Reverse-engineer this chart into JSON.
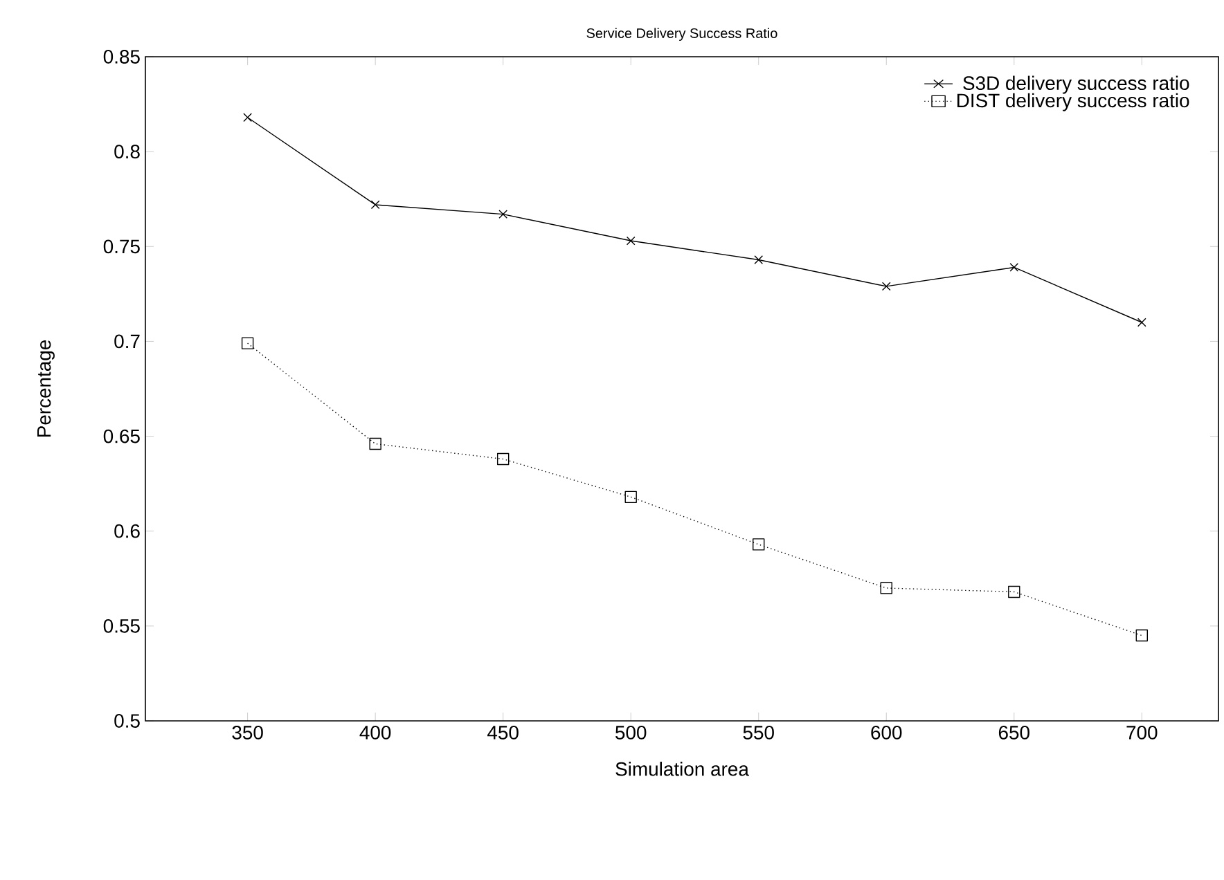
{
  "chart_data": {
    "type": "line",
    "title": "Service Delivery Success Ratio",
    "xlabel": "Simulation area",
    "ylabel": "Percentage",
    "x": [
      350,
      400,
      450,
      500,
      550,
      600,
      650,
      700
    ],
    "series": [
      {
        "name": "S3D delivery success ratio",
        "color": "#000000",
        "marker": "cross",
        "line_style": "solid",
        "values": [
          0.818,
          0.772,
          0.767,
          0.753,
          0.743,
          0.729,
          0.739,
          0.71
        ]
      },
      {
        "name": "DIST delivery success ratio",
        "color": "#000000",
        "marker": "square",
        "line_style": "dotted",
        "values": [
          0.699,
          0.646,
          0.638,
          0.618,
          0.593,
          0.57,
          0.568,
          0.545
        ]
      }
    ],
    "xlim": [
      310,
      730
    ],
    "xticks": [
      350,
      400,
      450,
      500,
      550,
      600,
      650,
      700
    ],
    "ylim": [
      0.5,
      0.85
    ],
    "yticks": [
      0.5,
      0.55,
      0.6,
      0.65,
      0.7,
      0.75,
      0.8,
      0.85
    ],
    "legend": "top right",
    "grid": false
  }
}
